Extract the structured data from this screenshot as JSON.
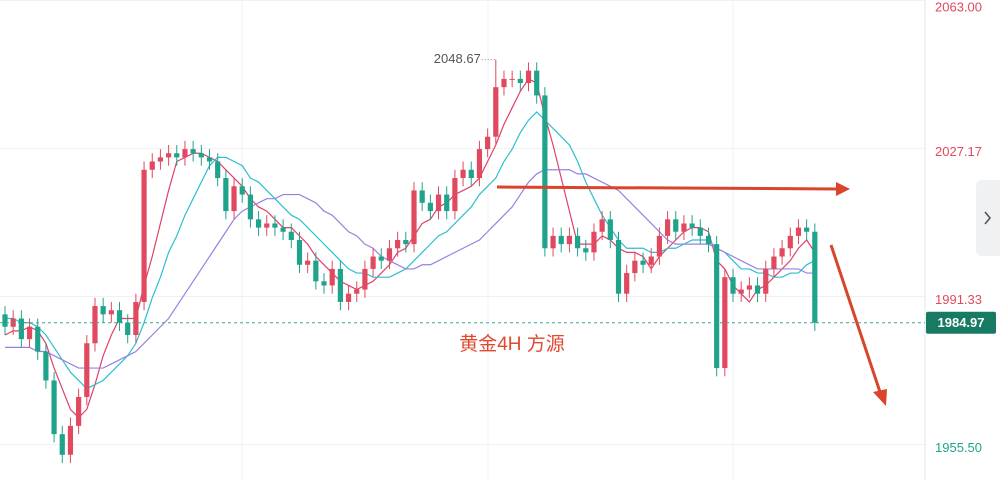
{
  "chart_data": {
    "type": "candlestick",
    "annotation": "黄金4H  方源",
    "up_color": "#e0495f",
    "down_color": "#1fa38a",
    "ylim": [
      1946.9,
      2063.1
    ],
    "yticks": [
      {
        "value": 2063,
        "label": "2063.00"
      },
      2027.17,
      1991.33,
      {
        "value": 1955.5,
        "label": "1955.50"
      }
    ],
    "grid": true,
    "last_price": 1984.97,
    "open": [
      1987,
      1984,
      1986,
      1981,
      1984,
      1978,
      1971,
      1958,
      1953,
      1960,
      1967,
      1980,
      1989,
      1987,
      1988,
      1985,
      1982,
      1990,
      2022,
      2024,
      2025,
      2026,
      2025,
      2027,
      2026,
      2025,
      2024,
      2020,
      2012,
      2018,
      2016,
      2010,
      2008,
      2009,
      2008,
      2007,
      2005,
      1999,
      2000,
      1995,
      1994,
      1998,
      1990,
      1992,
      1993,
      1998,
      2001,
      2000,
      2003,
      2005,
      2004,
      2017,
      2014,
      2012,
      2016,
      2012,
      2020,
      2022,
      2020,
      2027,
      2030,
      2042,
      2044,
      2044,
      2043,
      2046,
      2040,
      2003,
      2006,
      2004,
      2006,
      2003,
      2002,
      2007,
      2010,
      2005,
      1992,
      1997,
      2000,
      1999,
      2001,
      2006,
      2010,
      2007,
      2009,
      2008,
      2006,
      2004,
      1974,
      1996,
      1992,
      1993,
      1994,
      1992,
      1998,
      2001,
      2003,
      2006,
      2008,
      2007
    ],
    "high": [
      1989,
      1988,
      1988,
      1986,
      1986,
      1980,
      1973,
      1960,
      1962,
      1969,
      1982,
      1991,
      1991,
      1990,
      1990,
      1987,
      1992,
      2024,
      2026,
      2027,
      2028,
      2028,
      2029,
      2029,
      2028,
      2027,
      2026,
      2022,
      2020,
      2020,
      2018,
      2012,
      2011,
      2011,
      2010,
      2009,
      2007,
      2002,
      2002,
      1997,
      2000,
      2000,
      1994,
      1995,
      2000,
      2003,
      2003,
      2005,
      2007,
      2007,
      2019,
      2019,
      2016,
      2018,
      2018,
      2022,
      2024,
      2024,
      2029,
      2032,
      2048.67,
      2046,
      2046,
      2046,
      2048,
      2048,
      2042,
      2008,
      2008,
      2008,
      2008,
      2005,
      2009,
      2012,
      2012,
      2007,
      1999,
      2002,
      2002,
      2003,
      2008,
      2012,
      2012,
      2011,
      2011,
      2010,
      2008,
      2006,
      1998,
      1998,
      1995,
      1996,
      1996,
      2000,
      2003,
      2005,
      2008,
      2010,
      2010,
      2009
    ],
    "low": [
      1982,
      1982,
      1979,
      1979,
      1976,
      1969,
      1956,
      1951,
      1951,
      1958,
      1965,
      1978,
      1985,
      1985,
      1983,
      1980,
      1980,
      1988,
      2020,
      2022,
      2023,
      2023,
      2023,
      2024,
      2023,
      2022,
      2018,
      2010,
      2010,
      2014,
      2008,
      2006,
      2006,
      2006,
      2005,
      2003,
      1997,
      1997,
      1993,
      1992,
      1992,
      1988,
      1988,
      1990,
      1991,
      1996,
      1998,
      1998,
      2001,
      2002,
      2002,
      2012,
      2010,
      2010,
      2010,
      2010,
      2018,
      2018,
      2018,
      2025,
      2028,
      2040,
      2042,
      2041,
      2041,
      2038,
      2001,
      2001,
      2002,
      2002,
      2001,
      2000,
      2000,
      2005,
      2003,
      1990,
      1990,
      1995,
      1997,
      1997,
      1999,
      2004,
      2005,
      2005,
      2006,
      2004,
      2002,
      1972,
      1972,
      1990,
      1990,
      1991,
      1990,
      1990,
      1996,
      1999,
      2001,
      2004,
      2005,
      1983
    ],
    "close": [
      1984,
      1986,
      1981,
      1984,
      1978,
      1971,
      1958,
      1953,
      1960,
      1967,
      1980,
      1989,
      1987,
      1988,
      1985,
      1982,
      1990,
      2022,
      2024,
      2025,
      2026,
      2025,
      2027,
      2026,
      2025,
      2024,
      2020,
      2012,
      2018,
      2016,
      2010,
      2008,
      2009,
      2008,
      2007,
      2005,
      1999,
      2000,
      1995,
      1994,
      1998,
      1990,
      1992,
      1993,
      1998,
      2001,
      2000,
      2003,
      2005,
      2004,
      2017,
      2014,
      2012,
      2016,
      2012,
      2020,
      2022,
      2020,
      2027,
      2030,
      2042,
      2044,
      2044,
      2043,
      2046,
      2040,
      2003,
      2006,
      2004,
      2006,
      2003,
      2002,
      2007,
      2010,
      2005,
      1992,
      1997,
      2000,
      1999,
      2001,
      2006,
      2010,
      2007,
      2009,
      2008,
      2006,
      2004,
      1974,
      1996,
      1992,
      1993,
      1994,
      1992,
      1998,
      2001,
      2003,
      2006,
      2008,
      2007,
      1984.97
    ],
    "ma": [
      {
        "color": "#e0406a",
        "values": [
          1982,
          1983,
          1983,
          1984,
          1983,
          1980,
          1974,
          1969,
          1964,
          1962,
          1964,
          1970,
          1977,
          1982,
          1986,
          1986,
          1986,
          1994,
          2001,
          2009,
          2017,
          2024,
          2025,
          2026,
          2026,
          2025,
          2024,
          2022,
          2020,
          2018,
          2015,
          2013,
          2012,
          2010,
          2008,
          2008,
          2006,
          2004,
          2001,
          1999,
          1997,
          1995,
          1994,
          1993,
          1994,
          1995,
          1997,
          1999,
          2002,
          2003,
          2006,
          2009,
          2010,
          2013,
          2014,
          2016,
          2017,
          2018,
          2020,
          2024,
          2028,
          2033,
          2037,
          2041,
          2044,
          2043,
          2035,
          2028,
          2020,
          2012,
          2004,
          2004,
          2004,
          2006,
          2005,
          2003,
          2002,
          2002,
          2001,
          1998,
          2001,
          2003,
          2005,
          2007,
          2008,
          2008,
          2007,
          2000,
          1998,
          1994,
          1992,
          1990,
          1993,
          1994,
          1996,
          1998,
          2000,
          2003,
          2005,
          2002
        ]
      },
      {
        "color": "#2bbfcf",
        "values": [
          1986,
          1986,
          1985,
          1985,
          1984,
          1982,
          1979,
          1976,
          1973,
          1971,
          1969,
          1970,
          1971,
          1973,
          1975,
          1977,
          1980,
          1985,
          1991,
          1996,
          2002,
          2006,
          2011,
          2015,
          2019,
          2023,
          2025,
          2025,
          2024,
          2023,
          2020,
          2019,
          2017,
          2015,
          2013,
          2011,
          2010,
          2008,
          2006,
          2004,
          2002,
          2000,
          1998,
          1997,
          1997,
          1996,
          1996,
          1996,
          1997,
          1998,
          2000,
          2002,
          2004,
          2006,
          2007,
          2009,
          2011,
          2013,
          2016,
          2018,
          2020,
          2024,
          2027,
          2031,
          2034,
          2036,
          2034,
          2032,
          2030,
          2028,
          2024,
          2019,
          2015,
          2011,
          2008,
          2005,
          2003,
          2003,
          2003,
          2002,
          2002,
          2003,
          2003,
          2004,
          2005,
          2005,
          2005,
          2003,
          2002,
          2000,
          1998,
          1998,
          1997,
          1997,
          1996,
          1996,
          1997,
          1997,
          1999,
          2000
        ]
      },
      {
        "color": "#9b7fe0",
        "values": [
          1979,
          1979,
          1979,
          1979,
          1978,
          1978,
          1977,
          1976,
          1975,
          1974,
          1974,
          1974,
          1974,
          1975,
          1976,
          1977,
          1978,
          1980,
          1982,
          1984,
          1986,
          1989,
          1992,
          1995,
          1998,
          2001,
          2004,
          2007,
          2010,
          2012,
          2013,
          2014,
          2015,
          2015,
          2016,
          2016,
          2016,
          2015,
          2014,
          2012,
          2011,
          2009,
          2007,
          2006,
          2004,
          2003,
          2001,
          2000,
          1999,
          1998,
          1998,
          1999,
          1999,
          2000,
          2001,
          2002,
          2003,
          2004,
          2005,
          2007,
          2009,
          2011,
          2013,
          2016,
          2019,
          2021,
          2022,
          2022,
          2022,
          2022,
          2021,
          2021,
          2020,
          2019,
          2018,
          2017,
          2015,
          2013,
          2011,
          2009,
          2007,
          2005,
          2004,
          2004,
          2004,
          2004,
          2004,
          2003,
          2002,
          2001,
          2000,
          1999,
          1998,
          1998,
          1998,
          1998,
          1998,
          1998,
          1997,
          1997
        ]
      }
    ]
  }
}
